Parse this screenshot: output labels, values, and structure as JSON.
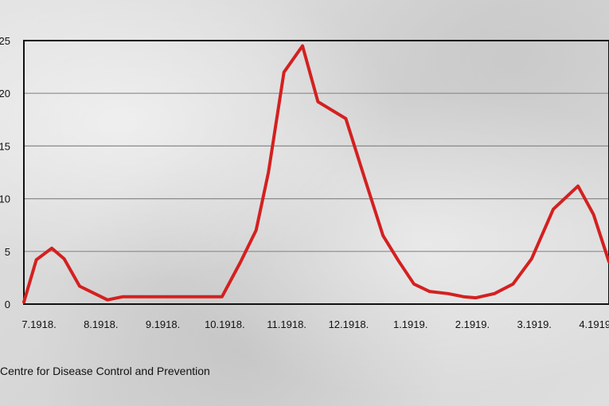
{
  "source_text": "Centre for Disease Control and Prevention",
  "colors": {
    "line": "#d42020",
    "grid": "#8a8a8a",
    "frame": "#111111"
  },
  "chart_data": {
    "type": "line",
    "title": "",
    "xlabel": "",
    "ylabel": "",
    "ylim": [
      0,
      25
    ],
    "yticks": [
      0,
      5,
      10,
      15,
      20,
      25
    ],
    "ytick_labels": [
      "0",
      "5",
      "10",
      "15",
      "20",
      "25"
    ],
    "xtick_labels": [
      "7.1918.",
      "8.1918.",
      "9.1918.",
      "10.1918.",
      "11.1918.",
      "12.1918.",
      "1.1919.",
      "2.1919.",
      "3.1919.",
      "4.1919."
    ],
    "xlim": [
      0,
      9.45
    ],
    "grid": true,
    "series": [
      {
        "x": [
          0,
          0.2,
          0.45,
          0.65,
          0.9,
          1.35,
          1.6,
          2.0,
          2.4,
          2.8,
          3.2,
          3.5,
          3.75,
          3.95,
          4.2,
          4.5,
          4.75,
          5.2,
          5.5,
          5.8,
          6.05,
          6.3,
          6.55,
          6.85,
          7.1,
          7.3,
          7.6,
          7.9,
          8.2,
          8.55,
          8.95,
          9.2,
          9.45
        ],
        "y": [
          0.2,
          4.2,
          5.3,
          4.3,
          1.7,
          0.4,
          0.7,
          0.7,
          0.7,
          0.7,
          0.7,
          4.0,
          7.0,
          12.5,
          22.0,
          24.5,
          19.2,
          17.6,
          12.0,
          6.5,
          4.1,
          1.9,
          1.2,
          1.0,
          0.7,
          0.6,
          1.0,
          1.9,
          4.3,
          9.0,
          11.2,
          8.5,
          4.0
        ]
      }
    ]
  }
}
